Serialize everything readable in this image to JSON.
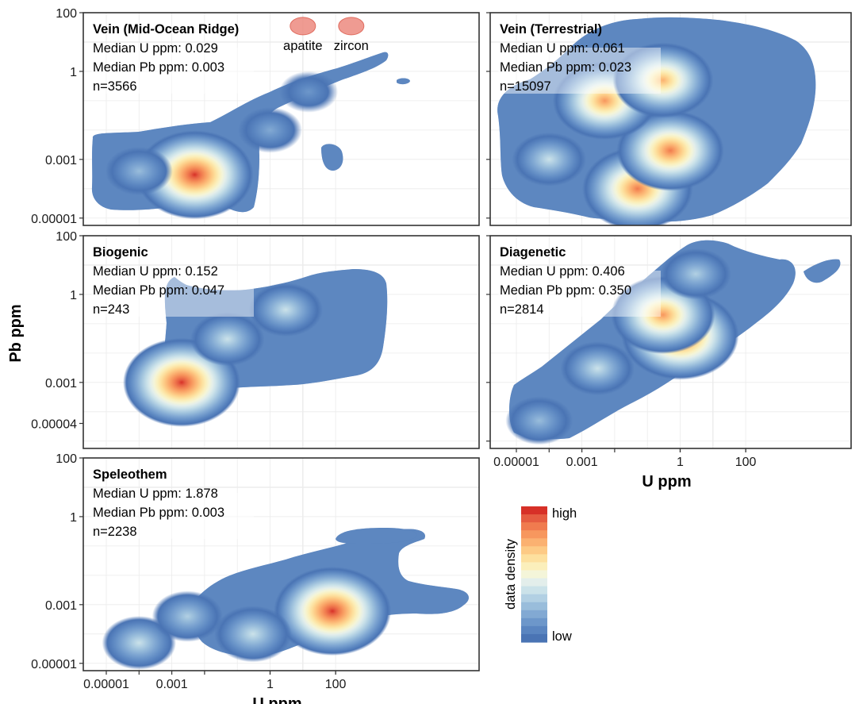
{
  "chart_data": {
    "type": "heatmap",
    "subtype": "2d-density-contour",
    "facet_layout": "3 rows x 2 columns, bottom-right empty, shared axes",
    "x_axis": {
      "label": "U ppm",
      "scale": "log10",
      "ticks": [
        "0.00001",
        "0.001",
        "1",
        "100"
      ],
      "tick_values": [
        1e-05,
        0.001,
        1,
        100
      ]
    },
    "y_axis": {
      "label": "Pb ppm",
      "scale": "log10"
    },
    "grid": true,
    "legend": {
      "title": "data density",
      "high_label": "high",
      "low_label": "low",
      "colors": [
        "#4a74b4",
        "#5a85c0",
        "#6d97ca",
        "#82a9d3",
        "#99bddb",
        "#b2d0e3",
        "#cbe2e9",
        "#e3eeeb",
        "#f4f5d9",
        "#fbefbb",
        "#fde09e",
        "#fdca85",
        "#fbb171",
        "#f7975e",
        "#f07b4f",
        "#e55c41",
        "#d73027"
      ],
      "placement": "lower-right"
    },
    "panels": [
      {
        "title": "Vein (Mid-Ocean Ridge)",
        "median_u": "Median U ppm: 0.029",
        "median_pb": "Median Pb ppm: 0.003",
        "n": "n=3566",
        "y_ticks": [
          "100",
          "1",
          "0.001",
          "0.00001"
        ],
        "y_tick_values": [
          100,
          1,
          0.001,
          1e-05
        ],
        "reference_points": [
          {
            "label": "apatite",
            "x": 10,
            "y": 35
          },
          {
            "label": "zircon",
            "x": 300,
            "y": 35
          }
        ],
        "density_clusters": [
          {
            "x": 0.005,
            "y": 0.0003,
            "peak": 1.0
          },
          {
            "x": 0.0001,
            "y": 0.0004,
            "peak": 0.25
          },
          {
            "x": 1,
            "y": 0.01,
            "peak": 0.2
          },
          {
            "x": 15,
            "y": 0.2,
            "peak": 0.12
          }
        ]
      },
      {
        "title": "Vein (Terrestrial)",
        "median_u": "Median U ppm: 0.061",
        "median_pb": "Median Pb ppm: 0.023",
        "n": "n=15097",
        "y_ticks": [],
        "y_tick_values": [],
        "reference_points": [],
        "density_clusters": [
          {
            "x": 0.05,
            "y": 0.0001,
            "peak": 0.9
          },
          {
            "x": 0.5,
            "y": 0.002,
            "peak": 0.85
          },
          {
            "x": 0.005,
            "y": 0.1,
            "peak": 0.8
          },
          {
            "x": 0.3,
            "y": 0.5,
            "peak": 0.75
          },
          {
            "x": 0.0001,
            "y": 0.001,
            "peak": 0.35
          }
        ]
      },
      {
        "title": "Biogenic",
        "median_u": "Median U ppm: 0.152",
        "median_pb": "Median Pb ppm: 0.047",
        "n": "n=243",
        "y_ticks": [
          "100",
          "1",
          "0.001",
          "0.00004"
        ],
        "y_tick_values": [
          100,
          1,
          0.001,
          4e-05
        ],
        "reference_points": [],
        "density_clusters": [
          {
            "x": 0.002,
            "y": 0.001,
            "peak": 1.0
          },
          {
            "x": 0.05,
            "y": 0.03,
            "peak": 0.35
          },
          {
            "x": 3,
            "y": 0.3,
            "peak": 0.35
          }
        ]
      },
      {
        "title": "Diagenetic",
        "median_u": "Median U ppm: 0.406",
        "median_pb": "Median Pb ppm: 0.350",
        "n": "n=2814",
        "y_ticks": [],
        "y_tick_values": [],
        "reference_points": [],
        "density_clusters": [
          {
            "x": 1,
            "y": 0.04,
            "peak": 1.0
          },
          {
            "x": 0.3,
            "y": 0.2,
            "peak": 0.8
          },
          {
            "x": 5e-05,
            "y": 5e-05,
            "peak": 0.25
          },
          {
            "x": 0.003,
            "y": 0.003,
            "peak": 0.35
          },
          {
            "x": 3,
            "y": 5,
            "peak": 0.3
          }
        ]
      },
      {
        "title": "Speleothem",
        "median_u": "Median U ppm: 1.878",
        "median_pb": "Median Pb ppm: 0.003",
        "n": "n=2238",
        "y_ticks": [
          "100",
          "1",
          "0.001",
          "0.00001"
        ],
        "y_tick_values": [
          100,
          1,
          0.001,
          1e-05
        ],
        "reference_points": [],
        "density_clusters": [
          {
            "x": 80,
            "y": 0.0006,
            "peak": 1.0
          },
          {
            "x": 0.3,
            "y": 0.0001,
            "peak": 0.4
          },
          {
            "x": 0.0001,
            "y": 5e-05,
            "peak": 0.35
          },
          {
            "x": 0.003,
            "y": 0.0004,
            "peak": 0.3
          }
        ]
      }
    ]
  }
}
